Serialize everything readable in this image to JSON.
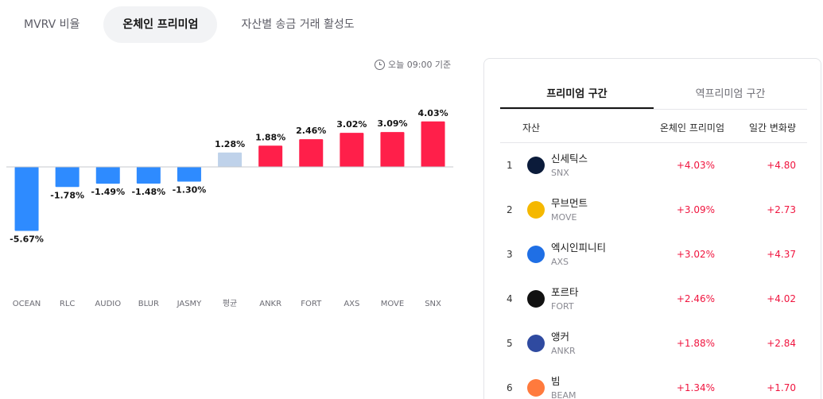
{
  "tabs": [
    {
      "label": "MVRV 비율"
    },
    {
      "label": "온체인 프리미엄"
    },
    {
      "label": "자산별 송금 거래 활성도"
    }
  ],
  "as_of": "오늘 09:00 기준",
  "chart_data": {
    "type": "bar",
    "categories": [
      "OCEAN",
      "RLC",
      "AUDIO",
      "BLUR",
      "JASMY",
      "평균",
      "ANKR",
      "FORT",
      "AXS",
      "MOVE",
      "SNX"
    ],
    "values": [
      -5.67,
      -1.78,
      -1.49,
      -1.48,
      -1.3,
      1.28,
      1.88,
      2.46,
      3.02,
      3.09,
      4.03
    ],
    "value_labels": [
      "-5.67%",
      "-1.78%",
      "-1.49%",
      "-1.48%",
      "-1.30%",
      "1.28%",
      "1.88%",
      "2.46%",
      "3.02%",
      "3.09%",
      "4.03%"
    ],
    "colors": {
      "negative": "#2e8bff",
      "average": "#bfd2ea",
      "positive": "#ff1f4a"
    },
    "average_index": 5
  },
  "panel": {
    "tabs": [
      {
        "label": "프리미엄 구간"
      },
      {
        "label": "역프리미엄 구간"
      }
    ],
    "headers": {
      "asset": "자산",
      "premium": "온체인 프리미엄",
      "change": "일간 변화량"
    },
    "rows": [
      {
        "rank": "1",
        "name": "신세틱스",
        "symbol": "SNX",
        "premium": "+4.03%",
        "change": "+4.80",
        "icon": "snx-icon",
        "icon_color": "#0b1b3a"
      },
      {
        "rank": "2",
        "name": "무브먼트",
        "symbol": "MOVE",
        "premium": "+3.09%",
        "change": "+2.73",
        "icon": "move-icon",
        "icon_color": "#f5b800"
      },
      {
        "rank": "3",
        "name": "엑시인피니티",
        "symbol": "AXS",
        "premium": "+3.02%",
        "change": "+4.37",
        "icon": "axs-icon",
        "icon_color": "#1f6fe5"
      },
      {
        "rank": "4",
        "name": "포르타",
        "symbol": "FORT",
        "premium": "+2.46%",
        "change": "+4.02",
        "icon": "fort-icon",
        "icon_color": "#111111"
      },
      {
        "rank": "5",
        "name": "앵커",
        "symbol": "ANKR",
        "premium": "+1.88%",
        "change": "+2.84",
        "icon": "ankr-icon",
        "icon_color": "#2f4aa0"
      },
      {
        "rank": "6",
        "name": "빔",
        "symbol": "BEAM",
        "premium": "+1.34%",
        "change": "+1.70",
        "icon": "beam-icon",
        "icon_color": "#ff7a3d"
      }
    ]
  }
}
